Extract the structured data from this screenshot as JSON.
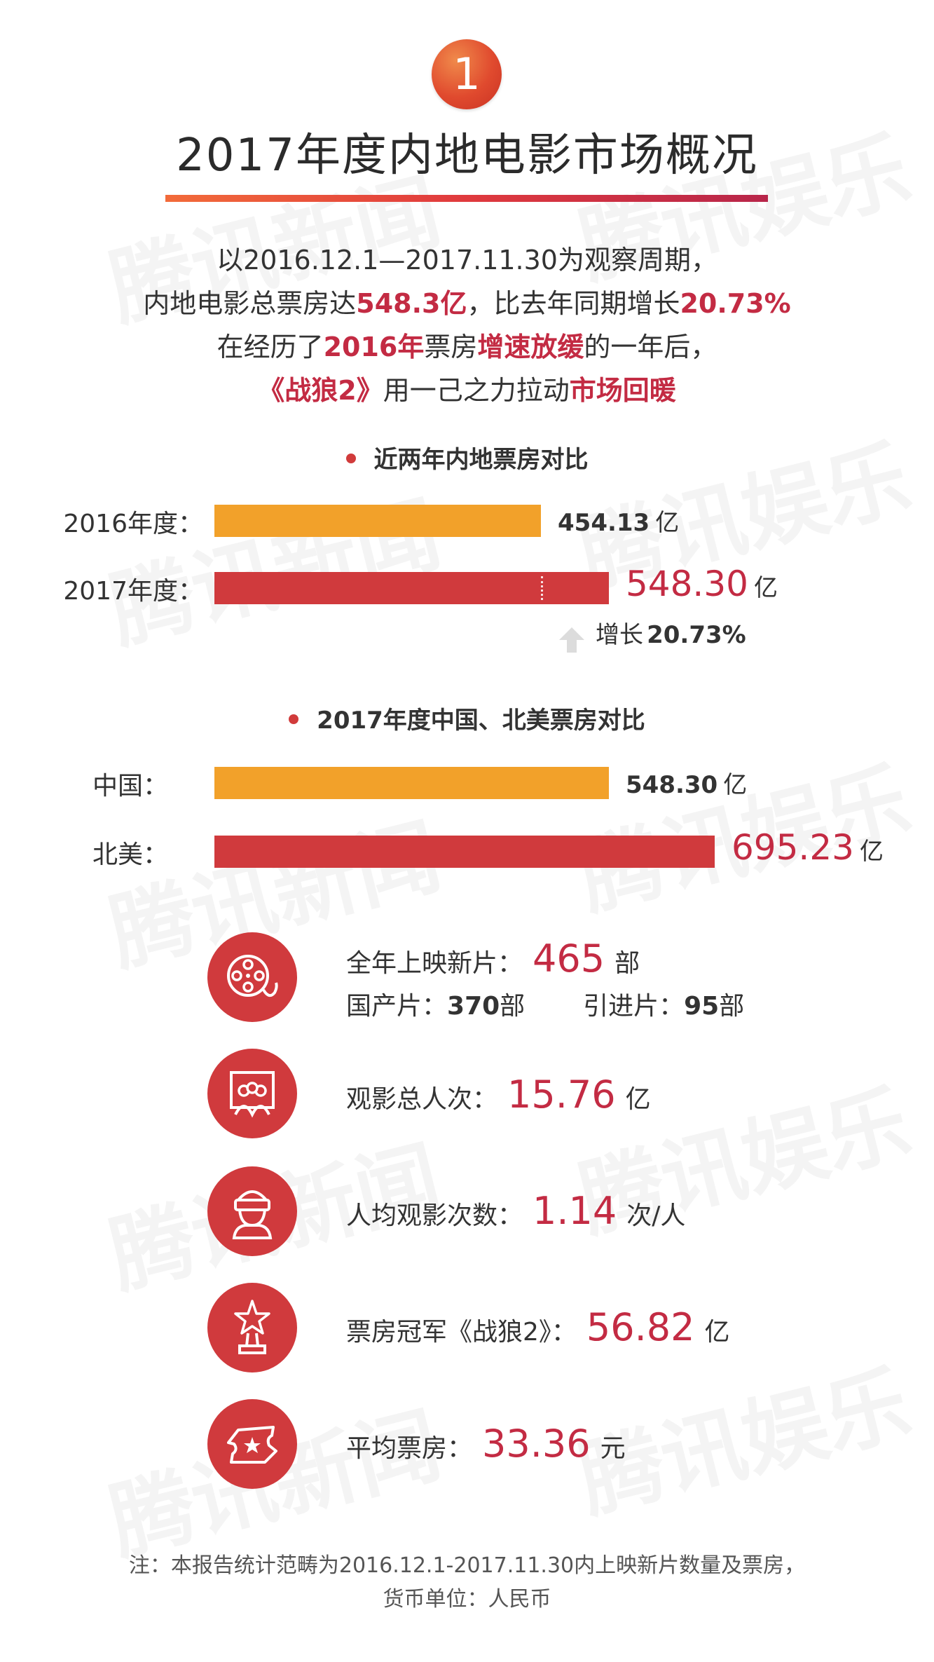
{
  "badge": "1",
  "title": "2017年度内地电影市场概况",
  "intro": {
    "l1": "以2016.12.1—2017.11.30为观察周期，",
    "l2a": "内地电影总票房达",
    "l2b": "548.3亿",
    "l2c": "，比去年同期增长",
    "l2d": "20.73%",
    "l3a": "在经历了",
    "l3b": "2016年",
    "l3c": "票房",
    "l3d": "增速放缓",
    "l3e": "的一年后，",
    "l4a": "《战狼2》",
    "l4b": "用一己之力拉动",
    "l4c": "市场回暖"
  },
  "watermark": "腾讯新闻",
  "watermark2": "腾讯娱乐",
  "chart_data": [
    {
      "type": "bar",
      "title": "近两年内地票房对比",
      "categories": [
        "2016年度：",
        "2017年度："
      ],
      "values": [
        454.13,
        548.3
      ],
      "value_labels": [
        "454.13",
        "548.30"
      ],
      "unit": "亿",
      "colors": [
        "#f2a12a",
        "#d03a3d"
      ],
      "annotation": {
        "label": "增长",
        "value": "20.73%"
      },
      "xlim": [
        0,
        695.23
      ]
    },
    {
      "type": "bar",
      "title": "2017年度中国、北美票房对比",
      "categories": [
        "中国：",
        "北美："
      ],
      "values": [
        548.3,
        695.23
      ],
      "value_labels": [
        "548.30",
        "695.23"
      ],
      "unit": "亿",
      "colors": [
        "#f2a12a",
        "#d03a3d"
      ],
      "xlim": [
        0,
        695.23
      ]
    }
  ],
  "stats": {
    "films": {
      "label": "全年上映新片：",
      "value": "465",
      "unit": "部",
      "sub1_label": "国产片：",
      "sub1_value": "370",
      "sub1_unit": "部",
      "sub2_label": "引进片：",
      "sub2_value": "95",
      "sub2_unit": "部",
      "icon": "film-reel-icon"
    },
    "admissions": {
      "label": "观影总人次：",
      "value": "15.76",
      "unit": "亿",
      "icon": "audience-icon"
    },
    "per_capita": {
      "label": "人均观影次数：",
      "value": "1.14",
      "unit": "次/人",
      "icon": "viewer-3d-glasses-icon"
    },
    "champion": {
      "label": "票房冠军《战狼2》：",
      "value": "56.82",
      "unit": "亿",
      "icon": "trophy-star-icon"
    },
    "avg_ticket": {
      "label": "平均票房：",
      "value": "33.36",
      "unit": "元",
      "icon": "ticket-icon"
    }
  },
  "note": {
    "l1": "注：本报告统计范畴为2016.12.1-2017.11.30内上映新片数量及票房，",
    "l2": "货币单位：人民币"
  }
}
